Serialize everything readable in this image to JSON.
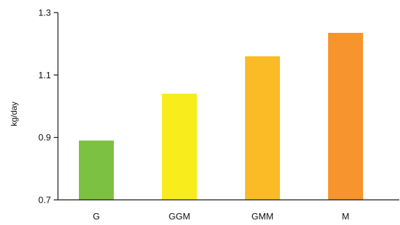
{
  "chart_data": {
    "type": "bar",
    "title": "",
    "xlabel": "",
    "ylabel": "kg/day",
    "categories": [
      "G",
      "GGM",
      "GMM",
      "M"
    ],
    "values": [
      0.89,
      1.04,
      1.16,
      1.235
    ],
    "colors": [
      "#7cc142",
      "#f9ec1d",
      "#fbbb27",
      "#f7942e"
    ],
    "ylim": [
      0.7,
      1.3
    ],
    "yticks": [
      0.7,
      0.9,
      1.1,
      1.3
    ],
    "ytick_labels": [
      "0.7",
      "0.9",
      "1.1",
      "1.3"
    ],
    "grid": false,
    "legend": "none"
  }
}
